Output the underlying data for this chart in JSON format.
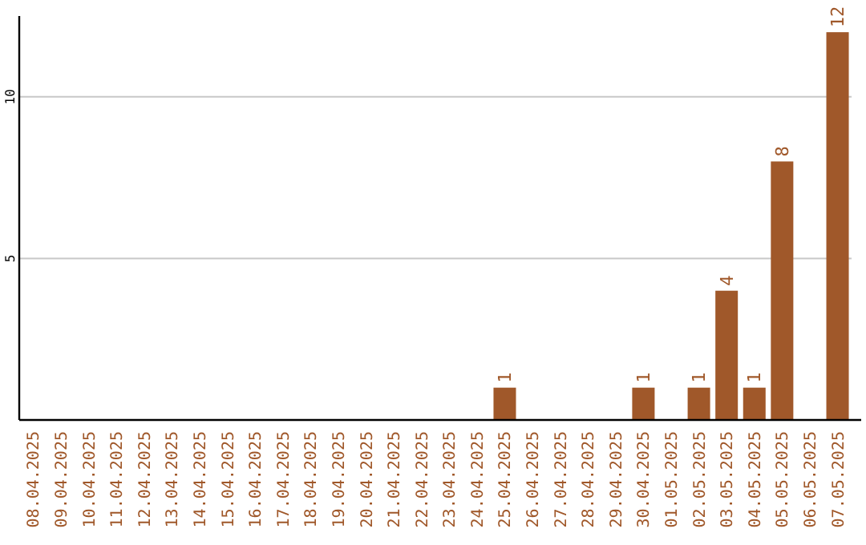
{
  "chart_data": {
    "type": "bar",
    "categories": [
      "08.04.2025",
      "09.04.2025",
      "10.04.2025",
      "11.04.2025",
      "12.04.2025",
      "13.04.2025",
      "14.04.2025",
      "15.04.2025",
      "16.04.2025",
      "17.04.2025",
      "18.04.2025",
      "19.04.2025",
      "20.04.2025",
      "21.04.2025",
      "22.04.2025",
      "23.04.2025",
      "24.04.2025",
      "25.04.2025",
      "26.04.2025",
      "27.04.2025",
      "28.04.2025",
      "29.04.2025",
      "30.04.2025",
      "01.05.2025",
      "02.05.2025",
      "03.05.2025",
      "04.05.2025",
      "05.05.2025",
      "06.05.2025",
      "07.05.2025"
    ],
    "values": [
      0,
      0,
      0,
      0,
      0,
      0,
      0,
      0,
      0,
      0,
      0,
      0,
      0,
      0,
      0,
      0,
      0,
      1,
      0,
      0,
      0,
      0,
      1,
      0,
      1,
      4,
      1,
      8,
      0,
      12
    ],
    "value_labels": [
      null,
      null,
      null,
      null,
      null,
      null,
      null,
      null,
      null,
      null,
      null,
      null,
      null,
      null,
      null,
      null,
      null,
      "1",
      null,
      null,
      null,
      null,
      "1",
      null,
      "1",
      "4",
      "1",
      "8",
      null,
      "12"
    ],
    "color": "#a0582a",
    "ylim": [
      0,
      12.5
    ],
    "yticks": [
      5,
      10
    ],
    "grid": "y"
  }
}
